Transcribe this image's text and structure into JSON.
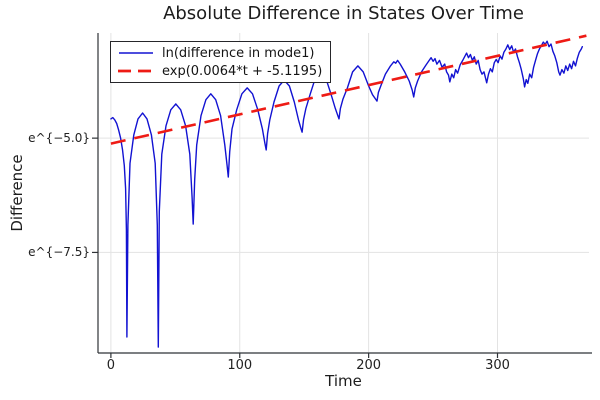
{
  "chart_data": {
    "type": "line",
    "title": "Absolute Difference in States Over Time",
    "xlabel": "Time",
    "ylabel": "Difference",
    "y_scale": "ln (values stored as natural log of Difference)",
    "x_range": [
      -10,
      371
    ],
    "y_range_ln": [
      -9.7,
      -2.7
    ],
    "grid": true,
    "legend_position": "top-left",
    "x_ticks": [
      {
        "value": 0,
        "label": "0"
      },
      {
        "value": 100,
        "label": "100"
      },
      {
        "value": 200,
        "label": "200"
      },
      {
        "value": 300,
        "label": "300"
      }
    ],
    "y_ticks": [
      {
        "value": -5.0,
        "label": "e^{−5.0}"
      },
      {
        "value": -7.5,
        "label": "e^{−7.5}"
      }
    ],
    "series": [
      {
        "name": "ln(difference in mode1)",
        "color": "#1212d2",
        "style": "solid",
        "points": [
          [
            0,
            -4.58
          ],
          [
            1.5,
            -4.55
          ],
          [
            3,
            -4.6
          ],
          [
            4.5,
            -4.68
          ],
          [
            6,
            -4.82
          ],
          [
            7.5,
            -5.0
          ],
          [
            9,
            -5.25
          ],
          [
            10.4,
            -5.6
          ],
          [
            11.4,
            -6.1
          ],
          [
            12,
            -7.0
          ],
          [
            12.4,
            -9.35
          ],
          [
            13.2,
            -6.9
          ],
          [
            14.8,
            -5.55
          ],
          [
            17.8,
            -4.93
          ],
          [
            21,
            -4.58
          ],
          [
            24.6,
            -4.45
          ],
          [
            28,
            -4.58
          ],
          [
            31.4,
            -4.93
          ],
          [
            34.4,
            -5.55
          ],
          [
            36,
            -6.9
          ],
          [
            36.8,
            -9.57
          ],
          [
            37.6,
            -6.6
          ],
          [
            39.5,
            -5.35
          ],
          [
            42.8,
            -4.73
          ],
          [
            46.5,
            -4.38
          ],
          [
            50.4,
            -4.25
          ],
          [
            54.2,
            -4.38
          ],
          [
            58,
            -4.73
          ],
          [
            61.2,
            -5.35
          ],
          [
            63,
            -6.3
          ],
          [
            63.9,
            -6.88
          ],
          [
            65,
            -5.9
          ],
          [
            66.6,
            -5.15
          ],
          [
            69.9,
            -4.51
          ],
          [
            73.7,
            -4.16
          ],
          [
            77.5,
            -4.03
          ],
          [
            81.3,
            -4.16
          ],
          [
            85.1,
            -4.51
          ],
          [
            88.4,
            -5.15
          ],
          [
            90.2,
            -5.6
          ],
          [
            91.1,
            -5.85
          ],
          [
            92.2,
            -5.3
          ],
          [
            94,
            -4.8
          ],
          [
            97.6,
            -4.38
          ],
          [
            101.7,
            -4.03
          ],
          [
            105.8,
            -3.9
          ],
          [
            109.9,
            -4.03
          ],
          [
            114,
            -4.38
          ],
          [
            117.6,
            -4.8
          ],
          [
            119.4,
            -5.1
          ],
          [
            120.5,
            -5.26
          ],
          [
            121.6,
            -4.9
          ],
          [
            123.3,
            -4.6
          ],
          [
            126.6,
            -4.21
          ],
          [
            130.5,
            -3.86
          ],
          [
            134.5,
            -3.73
          ],
          [
            138.5,
            -3.86
          ],
          [
            142.3,
            -4.21
          ],
          [
            145.6,
            -4.6
          ],
          [
            147.4,
            -4.78
          ],
          [
            148.4,
            -4.87
          ],
          [
            149.5,
            -4.6
          ],
          [
            151.3,
            -4.35
          ],
          [
            154.7,
            -4.03
          ],
          [
            158.7,
            -3.68
          ],
          [
            162.7,
            -3.55
          ],
          [
            166.7,
            -3.68
          ],
          [
            170.7,
            -4.03
          ],
          [
            174.1,
            -4.35
          ],
          [
            176,
            -4.5
          ],
          [
            177,
            -4.58
          ],
          [
            178.1,
            -4.35
          ],
          [
            180,
            -4.15
          ],
          [
            183.5,
            -3.9
          ],
          [
            187.6,
            -3.55
          ],
          [
            191.7,
            -3.42
          ],
          [
            195.8,
            -3.55
          ],
          [
            199.9,
            -3.85
          ],
          [
            203,
            -4.05
          ],
          [
            206.5,
            -4.19
          ],
          [
            207.6,
            -4.0
          ],
          [
            209.5,
            -3.85
          ],
          [
            213,
            -3.6
          ],
          [
            217,
            -3.42
          ],
          [
            219.5,
            -3.33
          ],
          [
            221,
            -3.36
          ],
          [
            222.5,
            -3.3
          ],
          [
            224.5,
            -3.38
          ],
          [
            228,
            -3.55
          ],
          [
            231.5,
            -3.75
          ],
          [
            233.8,
            -3.95
          ],
          [
            235,
            -4.1
          ],
          [
            236.2,
            -3.9
          ],
          [
            238,
            -3.75
          ],
          [
            241,
            -3.55
          ],
          [
            244.5,
            -3.4
          ],
          [
            247,
            -3.3
          ],
          [
            248.5,
            -3.24
          ],
          [
            250,
            -3.32
          ],
          [
            251.5,
            -3.26
          ],
          [
            253,
            -3.38
          ],
          [
            255,
            -3.3
          ],
          [
            257,
            -3.45
          ],
          [
            259,
            -3.38
          ],
          [
            260.5,
            -3.55
          ],
          [
            262,
            -3.62
          ],
          [
            263,
            -3.77
          ],
          [
            264.5,
            -3.6
          ],
          [
            266,
            -3.68
          ],
          [
            267.5,
            -3.5
          ],
          [
            269,
            -3.58
          ],
          [
            271,
            -3.4
          ],
          [
            273,
            -3.3
          ],
          [
            274.5,
            -3.22
          ],
          [
            276,
            -3.14
          ],
          [
            277.5,
            -3.24
          ],
          [
            279,
            -3.17
          ],
          [
            280.5,
            -3.3
          ],
          [
            282,
            -3.22
          ],
          [
            283.5,
            -3.38
          ],
          [
            285,
            -3.3
          ],
          [
            286.5,
            -3.5
          ],
          [
            288,
            -3.6
          ],
          [
            289.5,
            -3.55
          ],
          [
            291,
            -3.72
          ],
          [
            291.6,
            -3.79
          ],
          [
            293,
            -3.6
          ],
          [
            294.5,
            -3.48
          ],
          [
            296,
            -3.55
          ],
          [
            297.5,
            -3.35
          ],
          [
            299,
            -3.28
          ],
          [
            300.5,
            -3.35
          ],
          [
            302,
            -3.2
          ],
          [
            303.5,
            -3.27
          ],
          [
            305,
            -3.12
          ],
          [
            306.5,
            -3.05
          ],
          [
            308,
            -2.96
          ],
          [
            309.5,
            -3.06
          ],
          [
            311,
            -2.98
          ],
          [
            312.5,
            -3.12
          ],
          [
            314,
            -3.05
          ],
          [
            315.5,
            -3.22
          ],
          [
            317,
            -3.35
          ],
          [
            318.5,
            -3.5
          ],
          [
            320,
            -3.7
          ],
          [
            321,
            -3.88
          ],
          [
            322.3,
            -3.72
          ],
          [
            323.5,
            -3.8
          ],
          [
            325,
            -3.6
          ],
          [
            326.5,
            -3.68
          ],
          [
            328,
            -3.45
          ],
          [
            329.5,
            -3.3
          ],
          [
            331,
            -3.15
          ],
          [
            332.5,
            -3.05
          ],
          [
            334,
            -2.98
          ],
          [
            335.5,
            -2.9
          ],
          [
            337,
            -2.95
          ],
          [
            338.5,
            -2.88
          ],
          [
            340,
            -3.0
          ],
          [
            341.5,
            -2.94
          ],
          [
            343,
            -3.1
          ],
          [
            344.5,
            -3.2
          ],
          [
            346,
            -3.35
          ],
          [
            347.5,
            -3.55
          ],
          [
            348.5,
            -3.62
          ],
          [
            350,
            -3.5
          ],
          [
            351.5,
            -3.58
          ],
          [
            353,
            -3.42
          ],
          [
            354.5,
            -3.52
          ],
          [
            356,
            -3.38
          ],
          [
            357.5,
            -3.48
          ],
          [
            359,
            -3.32
          ],
          [
            360.5,
            -3.42
          ],
          [
            362,
            -3.25
          ],
          [
            363.5,
            -3.12
          ],
          [
            365,
            -3.05
          ],
          [
            365.8,
            -3.0
          ]
        ]
      },
      {
        "name": "exp(0.0064*t + -5.1195)",
        "color": "#ee1b15",
        "style": "dashed",
        "fit": {
          "slope": 0.0064,
          "intercept": -5.1195
        },
        "points": [
          [
            0,
            -5.1195
          ],
          [
            369,
            -2.758
          ]
        ]
      }
    ]
  }
}
